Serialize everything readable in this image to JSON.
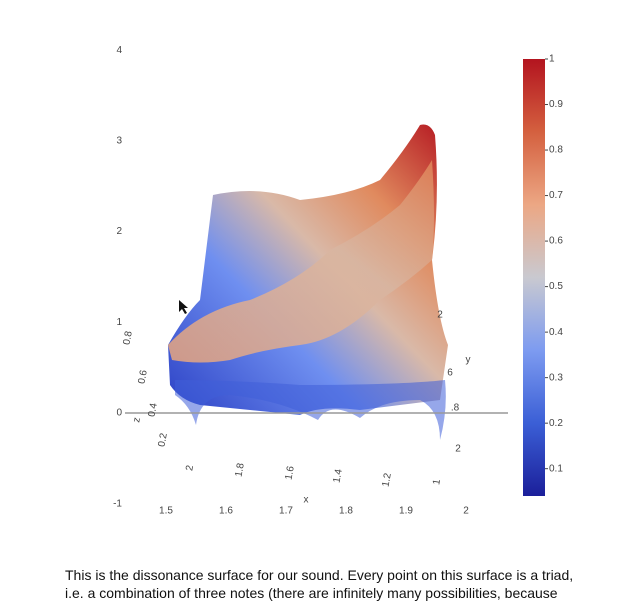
{
  "plot": {
    "z_axis_ticks": [
      4,
      3,
      2,
      1,
      0,
      -1
    ],
    "zero_line": true,
    "colorbar": {
      "range": [
        0.04,
        1
      ],
      "ticks": [
        1,
        0.9,
        0.8,
        0.7,
        0.6,
        0.5,
        0.4,
        0.3,
        0.2,
        0.1
      ],
      "colorscale": [
        "#1b1f9a",
        "#3b5fd6",
        "#7d9bf0",
        "#c9c9d0",
        "#eca784",
        "#d4603f",
        "#b3141f"
      ]
    },
    "x_ticks": [
      1.5,
      1.6,
      1.7,
      1.8,
      1.9,
      2
    ],
    "x_label": "x",
    "y_ticks": [
      "2",
      "1.8",
      "1.6",
      "1.4",
      "1.2",
      "1"
    ],
    "y_label": "y",
    "z_ticks": [
      "0.8",
      "0.6",
      "0.4",
      "0.2"
    ],
    "z_label": "z",
    "side_ticks": [
      "2",
      "6",
      ".8",
      "2"
    ]
  },
  "caption": [
    "This is the dissonance surface for our sound. Every point on this surface is a triad,",
    "i.e. a combination of three notes (there are infinitely many possibilities, because"
  ]
}
